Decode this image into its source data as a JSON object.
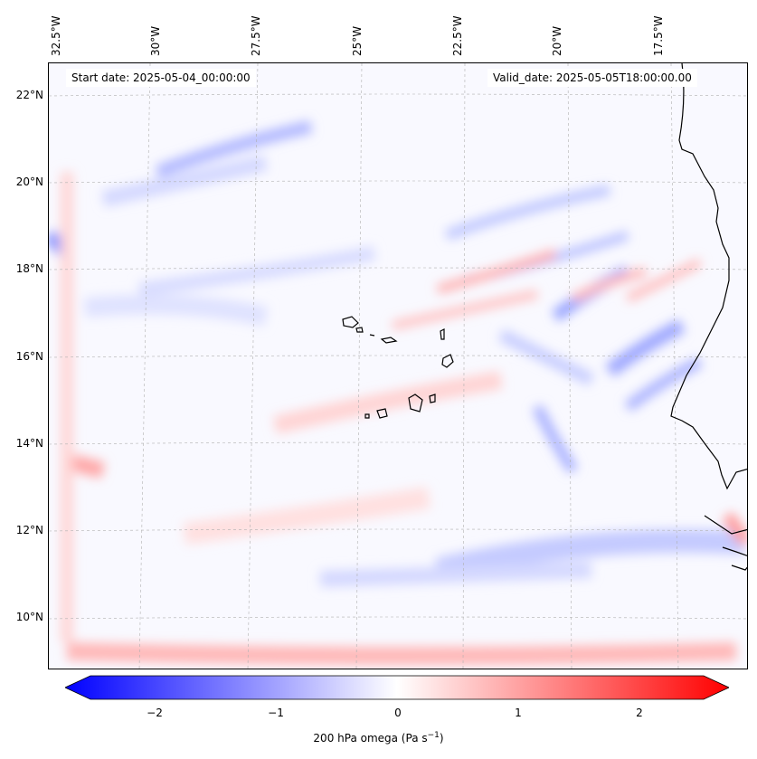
{
  "map": {
    "start_date": "Start date: 2025-05-04_00:00:00",
    "valid_date": "Valid_date: 2025-05-05T18:00:00.00",
    "top_ticks": [
      "32.5°W",
      "30°W",
      "27.5°W",
      "25°W",
      "22.5°W",
      "20°W",
      "17.5°W"
    ],
    "left_ticks": [
      "22°N",
      "20°N",
      "18°N",
      "16°N",
      "14°N",
      "12°N",
      "10°N"
    ],
    "field_name": "200 hPa omega",
    "colormap": "bwr",
    "colors": {
      "negative": "#0000ff",
      "neutral": "#ffffff",
      "positive": "#ff0000",
      "coast": "#000000",
      "grid": "#b0b0b0"
    }
  },
  "colorbar": {
    "ticks": [
      "−2",
      "−1",
      "0",
      "1",
      "2"
    ],
    "label": "200 hPa omega (Pa s",
    "label_exp": "−1",
    "label_close": ")",
    "range": [
      -2.6,
      2.6
    ]
  }
}
